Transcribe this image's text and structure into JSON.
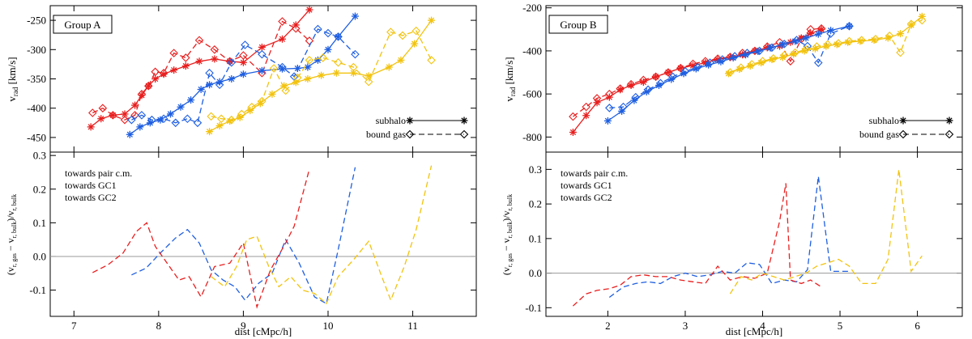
{
  "colors": {
    "pair": "#1f5fe0",
    "gc1": "#e81f1f",
    "gc2": "#f2c30f",
    "zero_line": "#9a9a9a",
    "frame": "#000000"
  },
  "chart_data": [
    {
      "id": "groupA",
      "type": "line",
      "title": "Group A",
      "xlabel": "dist [cMpc/h]",
      "xlim": [
        6.72,
        11.75
      ],
      "xticks": [
        7,
        8,
        9,
        10,
        11
      ],
      "top": {
        "ylabel_main": "v",
        "ylabel_sub": "rad",
        "ylabel_unit": " [km/s]",
        "ylim": [
          -475,
          -225
        ],
        "yticks": [
          -450,
          -400,
          -350,
          -300,
          -250
        ],
        "legend": {
          "subhalo": "subhalo",
          "bound_gas": "bound gas"
        },
        "series": [
          {
            "name": "subhalo GC1",
            "color": "gc1",
            "marker": "star",
            "dash": false,
            "x": [
              7.2,
              7.32,
              7.46,
              7.6,
              7.72,
              7.8,
              7.88,
              7.96,
              8.06,
              8.18,
              8.32,
              8.48,
              8.66,
              8.84,
              9.0,
              9.22,
              9.46,
              9.62,
              9.78
            ],
            "y": [
              -432,
              -418,
              -412,
              -410,
              -395,
              -378,
              -362,
              -350,
              -342,
              -335,
              -328,
              -320,
              -316,
              -320,
              -322,
              -296,
              -282,
              -258,
              -232
            ]
          },
          {
            "name": "bound gas GC1",
            "color": "gc1",
            "marker": "diamond",
            "dash": true,
            "x": [
              7.22,
              7.34,
              7.46,
              7.6,
              7.72,
              7.8,
              7.88,
              7.96,
              8.06,
              8.18,
              8.32,
              8.48,
              8.66,
              8.84,
              9.0,
              9.22,
              9.46,
              9.62,
              9.78
            ],
            "y": [
              -408,
              -400,
              -412,
              -420,
              -412,
              -376,
              -362,
              -338,
              -340,
              -306,
              -314,
              -284,
              -300,
              -320,
              -310,
              -340,
              -252,
              -264,
              -285
            ]
          },
          {
            "name": "subhalo pair",
            "color": "pair",
            "marker": "star",
            "dash": false,
            "x": [
              7.66,
              7.78,
              7.9,
              8.02,
              8.14,
              8.26,
              8.38,
              8.5,
              8.6,
              8.72,
              8.86,
              9.0,
              9.22,
              9.46,
              9.64,
              9.76,
              9.88,
              10.0,
              10.12,
              10.32
            ],
            "y": [
              -445,
              -432,
              -425,
              -420,
              -410,
              -398,
              -386,
              -368,
              -360,
              -355,
              -350,
              -342,
              -336,
              -333,
              -332,
              -330,
              -318,
              -300,
              -278,
              -243
            ]
          },
          {
            "name": "bound gas pair",
            "color": "pair",
            "marker": "diamond",
            "dash": true,
            "x": [
              7.68,
              7.8,
              7.92,
              8.06,
              8.2,
              8.34,
              8.46,
              8.6,
              8.72,
              8.86,
              9.02,
              9.22,
              9.46,
              9.6,
              9.88,
              10.0,
              10.12,
              10.32
            ],
            "y": [
              -420,
              -412,
              -420,
              -418,
              -425,
              -418,
              -425,
              -340,
              -360,
              -322,
              -292,
              -308,
              -330,
              -346,
              -265,
              -272,
              -278,
              -308
            ]
          },
          {
            "name": "subhalo GC2",
            "color": "gc2",
            "marker": "star",
            "dash": false,
            "x": [
              8.6,
              8.72,
              8.84,
              8.96,
              9.08,
              9.2,
              9.34,
              9.48,
              9.62,
              9.76,
              9.92,
              10.1,
              10.3,
              10.48,
              10.72,
              10.86,
              11.02,
              11.22
            ],
            "y": [
              -440,
              -430,
              -422,
              -416,
              -404,
              -392,
              -376,
              -362,
              -356,
              -350,
              -344,
              -340,
              -340,
              -345,
              -330,
              -318,
              -290,
              -250
            ]
          },
          {
            "name": "bound gas GC2",
            "color": "gc2",
            "marker": "diamond",
            "dash": true,
            "x": [
              8.62,
              8.74,
              8.86,
              8.98,
              9.1,
              9.22,
              9.36,
              9.5,
              9.64,
              9.78,
              9.94,
              10.12,
              10.3,
              10.48,
              10.74,
              10.88,
              11.04,
              11.22
            ],
            "y": [
              -414,
              -418,
              -420,
              -410,
              -398,
              -388,
              -332,
              -370,
              -348,
              -318,
              -314,
              -322,
              -330,
              -355,
              -270,
              -276,
              -268,
              -318
            ]
          }
        ]
      },
      "bottom": {
        "ylabel": "(v_r,gas − v_r,bulk)/v_r,bulk",
        "ylim": [
          -0.178,
          0.31
        ],
        "yticks": [
          -0.1,
          0.0,
          0.1,
          0.2,
          0.3
        ],
        "ytick_labels": [
          "-0.1",
          "0.0",
          "0.1",
          "0.2",
          "0.3"
        ],
        "legend": [
          "towards pair c.m.",
          "towards GC1",
          "towards GC2"
        ],
        "series": [
          {
            "name": "towards pair c.m.",
            "color": "pair",
            "x": [
              7.68,
              7.85,
              8.02,
              8.2,
              8.34,
              8.48,
              8.62,
              8.76,
              8.9,
              9.02,
              9.18,
              9.34,
              9.5,
              9.66,
              9.84,
              9.98,
              10.12,
              10.32
            ],
            "y": [
              -0.055,
              -0.035,
              0.01,
              0.055,
              0.08,
              0.04,
              -0.04,
              -0.07,
              -0.09,
              -0.13,
              -0.08,
              -0.05,
              0.05,
              -0.02,
              -0.12,
              -0.14,
              0.02,
              0.265
            ]
          },
          {
            "name": "towards GC1",
            "color": "gc1",
            "x": [
              7.22,
              7.4,
              7.58,
              7.74,
              7.86,
              7.96,
              8.1,
              8.24,
              8.36,
              8.5,
              8.66,
              8.84,
              9.0,
              9.16,
              9.32,
              9.5,
              9.6,
              9.78
            ],
            "y": [
              -0.048,
              -0.025,
              0.01,
              0.075,
              0.1,
              0.03,
              -0.02,
              -0.07,
              -0.06,
              -0.12,
              -0.03,
              -0.02,
              0.04,
              -0.15,
              -0.04,
              0.04,
              0.09,
              0.26
            ]
          },
          {
            "name": "towards GC2",
            "color": "gc2",
            "x": [
              8.62,
              8.78,
              8.92,
              9.04,
              9.16,
              9.3,
              9.42,
              9.56,
              9.7,
              9.84,
              9.98,
              10.12,
              10.3,
              10.48,
              10.62,
              10.74,
              10.9,
              11.04,
              11.22
            ],
            "y": [
              -0.06,
              -0.09,
              -0.03,
              0.05,
              0.06,
              -0.03,
              -0.09,
              -0.06,
              -0.1,
              -0.11,
              -0.14,
              -0.06,
              -0.01,
              0.045,
              -0.05,
              -0.13,
              -0.03,
              0.08,
              0.27
            ]
          }
        ]
      }
    },
    {
      "id": "groupB",
      "type": "line",
      "title": "Group B",
      "xlabel": "dist [cMpc/h]",
      "xlim": [
        1.2,
        6.58
      ],
      "xticks": [
        2,
        3,
        4,
        5,
        6
      ],
      "top": {
        "ylabel_main": "v",
        "ylabel_sub": "rad",
        "ylabel_unit": " [km/s]",
        "ylim": [
          -870,
          -190
        ],
        "yticks": [
          -800,
          -600,
          -400,
          -200
        ],
        "legend": {
          "subhalo": "subhalo",
          "bound_gas": "bound gas"
        },
        "series": [
          {
            "name": "subhalo GC1",
            "color": "gc1",
            "marker": "star",
            "dash": false,
            "x": [
              1.55,
              1.72,
              1.86,
              2.02,
              2.16,
              2.3,
              2.46,
              2.62,
              2.78,
              2.94,
              3.1,
              3.26,
              3.42,
              3.58,
              3.74,
              3.9,
              4.06,
              4.22,
              4.36,
              4.5,
              4.62,
              4.76
            ],
            "y": [
              -778,
              -700,
              -640,
              -615,
              -580,
              -560,
              -545,
              -520,
              -500,
              -480,
              -468,
              -455,
              -440,
              -430,
              -418,
              -400,
              -385,
              -378,
              -360,
              -340,
              -320,
              -300
            ]
          },
          {
            "name": "bound gas GC1",
            "color": "gc1",
            "marker": "diamond",
            "dash": true,
            "x": [
              1.55,
              1.72,
              1.86,
              2.02,
              2.16,
              2.3,
              2.46,
              2.62,
              2.78,
              2.94,
              3.1,
              3.26,
              3.42,
              3.58,
              3.74,
              3.9,
              4.06,
              4.22,
              4.36,
              4.5,
              4.62,
              4.76
            ],
            "y": [
              -705,
              -660,
              -620,
              -600,
              -575,
              -555,
              -535,
              -520,
              -500,
              -480,
              -460,
              -448,
              -436,
              -428,
              -410,
              -400,
              -380,
              -360,
              -448,
              -345,
              -300,
              -296
            ]
          },
          {
            "name": "subhalo pair",
            "color": "pair",
            "marker": "star",
            "dash": false,
            "x": [
              2.0,
              2.18,
              2.34,
              2.5,
              2.66,
              2.82,
              2.98,
              3.14,
              3.3,
              3.46,
              3.62,
              3.78,
              3.94,
              4.1,
              4.26,
              4.42,
              4.56,
              4.72,
              4.88,
              5.12
            ],
            "y": [
              -725,
              -680,
              -630,
              -590,
              -560,
              -532,
              -505,
              -483,
              -465,
              -450,
              -432,
              -418,
              -402,
              -386,
              -370,
              -355,
              -340,
              -322,
              -305,
              -285
            ]
          },
          {
            "name": "bound gas pair",
            "color": "pair",
            "marker": "diamond",
            "dash": true,
            "x": [
              2.02,
              2.2,
              2.36,
              2.52,
              2.68,
              2.84,
              3.0,
              3.16,
              3.32,
              3.48,
              3.64,
              3.8,
              3.96,
              4.12,
              4.28,
              4.44,
              4.58,
              4.72,
              4.88,
              5.12
            ],
            "y": [
              -665,
              -660,
              -615,
              -580,
              -550,
              -520,
              -495,
              -475,
              -455,
              -440,
              -425,
              -410,
              -400,
              -385,
              -368,
              -350,
              -378,
              -455,
              -320,
              -285
            ]
          },
          {
            "name": "subhalo GC2",
            "color": "gc2",
            "marker": "star",
            "dash": false,
            "x": [
              3.56,
              3.7,
              3.84,
              3.98,
              4.12,
              4.26,
              4.4,
              4.54,
              4.68,
              4.82,
              4.96,
              5.1,
              5.26,
              5.44,
              5.62,
              5.78,
              5.92,
              6.06
            ],
            "y": [
              -505,
              -485,
              -470,
              -455,
              -440,
              -430,
              -415,
              -400,
              -390,
              -378,
              -370,
              -360,
              -355,
              -350,
              -340,
              -320,
              -280,
              -240
            ]
          },
          {
            "name": "bound gas GC2",
            "color": "gc2",
            "marker": "diamond",
            "dash": true,
            "x": [
              3.58,
              3.72,
              3.86,
              4.0,
              4.14,
              4.28,
              4.42,
              4.56,
              4.7,
              4.84,
              4.98,
              5.12,
              5.28,
              5.46,
              5.64,
              5.78,
              5.92,
              6.06
            ],
            "y": [
              -500,
              -478,
              -462,
              -448,
              -435,
              -420,
              -408,
              -393,
              -380,
              -370,
              -365,
              -355,
              -350,
              -345,
              -330,
              -408,
              -275,
              -258
            ]
          }
        ]
      },
      "bottom": {
        "ylabel": "(v_r,gas − v_r,bulk)/v_r,bulk",
        "ylim": [
          -0.125,
          0.35
        ],
        "yticks": [
          -0.1,
          0.0,
          0.1,
          0.2,
          0.3
        ],
        "ytick_labels": [
          "-0.1",
          "0.0",
          "0.1",
          "0.2",
          "0.3"
        ],
        "legend": [
          "towards pair c.m.",
          "towards GC1",
          "towards GC2"
        ],
        "series": [
          {
            "name": "towards pair c.m.",
            "color": "pair",
            "x": [
              2.02,
              2.2,
              2.36,
              2.52,
              2.68,
              2.84,
              3.0,
              3.16,
              3.32,
              3.48,
              3.64,
              3.8,
              3.96,
              4.12,
              4.28,
              4.44,
              4.58,
              4.72,
              4.88,
              5.12
            ],
            "y": [
              -0.07,
              -0.04,
              -0.03,
              -0.025,
              -0.03,
              -0.01,
              0.0,
              -0.01,
              -0.005,
              0.005,
              0.0,
              0.03,
              0.025,
              -0.03,
              -0.02,
              -0.025,
              0.01,
              0.28,
              0.005,
              0.005
            ]
          },
          {
            "name": "towards GC1",
            "color": "gc1",
            "x": [
              1.55,
              1.72,
              1.86,
              2.02,
              2.16,
              2.3,
              2.46,
              2.62,
              2.78,
              2.94,
              3.1,
              3.26,
              3.42,
              3.58,
              3.74,
              3.9,
              4.06,
              4.22,
              4.3,
              4.36,
              4.5,
              4.62,
              4.76
            ],
            "y": [
              -0.095,
              -0.06,
              -0.05,
              -0.045,
              -0.035,
              -0.01,
              -0.005,
              -0.01,
              -0.01,
              -0.02,
              -0.025,
              -0.03,
              0.02,
              -0.02,
              -0.01,
              -0.015,
              0.0,
              0.15,
              0.26,
              -0.02,
              -0.03,
              -0.02,
              -0.04
            ]
          },
          {
            "name": "towards GC2",
            "color": "gc2",
            "x": [
              3.58,
              3.72,
              3.86,
              4.0,
              4.14,
              4.28,
              4.42,
              4.56,
              4.7,
              4.84,
              4.98,
              5.12,
              5.28,
              5.46,
              5.62,
              5.76,
              5.92,
              6.06
            ],
            "y": [
              -0.06,
              -0.01,
              -0.02,
              0.0,
              -0.01,
              -0.02,
              -0.01,
              0.0,
              0.02,
              0.03,
              0.04,
              0.02,
              -0.03,
              -0.03,
              0.04,
              0.3,
              0.005,
              0.05
            ]
          }
        ]
      }
    }
  ]
}
